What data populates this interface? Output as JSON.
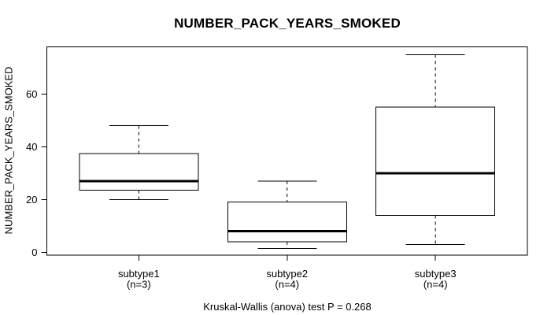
{
  "figure": {
    "background": "#ffffff",
    "foreground": "#000000"
  },
  "chart_data": {
    "type": "box",
    "title": "NUMBER_PACK_YEARS_SMOKED",
    "ylabel": "NUMBER_PACK_YEARS_SMOKED",
    "xlabel": "",
    "caption": "Kruskal-Wallis (anova) test P = 0.268",
    "categories": [
      "subtype1",
      "subtype2",
      "subtype3"
    ],
    "n_labels": [
      "(n=3)",
      "(n=4)",
      "(n=4)"
    ],
    "yticks": [
      0,
      20,
      40,
      60
    ],
    "ylim": [
      -1.1,
      78
    ],
    "grid": false,
    "legend": "none",
    "whisker_style": "dashed",
    "series": [
      {
        "name": "subtype1",
        "n": 3,
        "min": 20,
        "q1": 23.5,
        "median": 27,
        "q3": 37.5,
        "max": 48,
        "outliers": []
      },
      {
        "name": "subtype2",
        "n": 4,
        "min": 1.5,
        "q1": 4,
        "median": 8,
        "q3": 19,
        "max": 27,
        "outliers": []
      },
      {
        "name": "subtype3",
        "n": 4,
        "min": 3,
        "q1": 14,
        "median": 30,
        "q3": 55,
        "max": 75,
        "outliers": []
      }
    ],
    "colors": {
      "box_fill": "#ffffff",
      "line": "#000000",
      "median": "#000000",
      "background": "#ffffff"
    }
  }
}
